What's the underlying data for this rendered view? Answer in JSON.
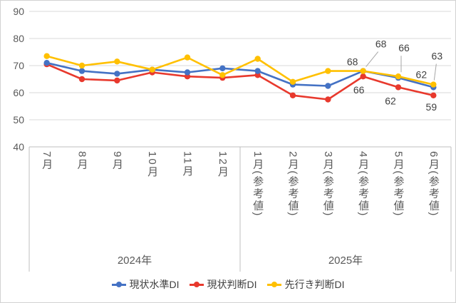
{
  "chart_data": {
    "type": "line",
    "title": "",
    "categories": [
      "7月",
      "8月",
      "9月",
      "10月",
      "11月",
      "12月",
      "1月(参考値)",
      "2月(参考値)",
      "3月(参考値)",
      "4月(参考値)",
      "5月(参考値)",
      "6月(参考値)"
    ],
    "category_groups": [
      {
        "label": "2024年",
        "start": 0,
        "end": 5
      },
      {
        "label": "2025年",
        "start": 6,
        "end": 11
      }
    ],
    "series": [
      {
        "name": "現状水準DI",
        "color": "#4472C4",
        "values": [
          71,
          68,
          67,
          68.5,
          67.5,
          69,
          68,
          63,
          62.5,
          68,
          65.5,
          62
        ]
      },
      {
        "name": "現状判断DI",
        "color": "#E8392D",
        "values": [
          70.5,
          65,
          64.5,
          67.5,
          66,
          65.5,
          66.5,
          59,
          57.5,
          66,
          62,
          59
        ]
      },
      {
        "name": "先行き判断DI",
        "color": "#FFC000",
        "values": [
          73.5,
          70,
          71.5,
          68.5,
          73,
          66.5,
          72.5,
          64,
          68,
          68,
          66,
          63
        ]
      }
    ],
    "data_labels": [
      {
        "series": 0,
        "point": 9,
        "text": "68",
        "leader": false
      },
      {
        "series": 0,
        "point": 11,
        "text": "62",
        "leader": false
      },
      {
        "series": 1,
        "point": 9,
        "text": "66",
        "leader": false
      },
      {
        "series": 1,
        "point": 10,
        "text": "62",
        "leader": false
      },
      {
        "series": 1,
        "point": 11,
        "text": "59",
        "leader": false
      },
      {
        "series": 2,
        "point": 9,
        "text": "68",
        "leader": true
      },
      {
        "series": 2,
        "point": 10,
        "text": "66",
        "leader": true
      },
      {
        "series": 2,
        "point": 11,
        "text": "63",
        "leader": true
      }
    ],
    "y_axis": {
      "min": 40,
      "max": 90,
      "step": 10,
      "ticks": [
        "90",
        "80",
        "70",
        "60",
        "50",
        "40"
      ]
    },
    "x_axis_tiers": 2,
    "grid": true,
    "legend_position": "bottom",
    "colors": {
      "grid": "#D9D9D9",
      "axis": "#BFBFBF",
      "axis_text": "#595959",
      "label_text": "#404040"
    }
  }
}
